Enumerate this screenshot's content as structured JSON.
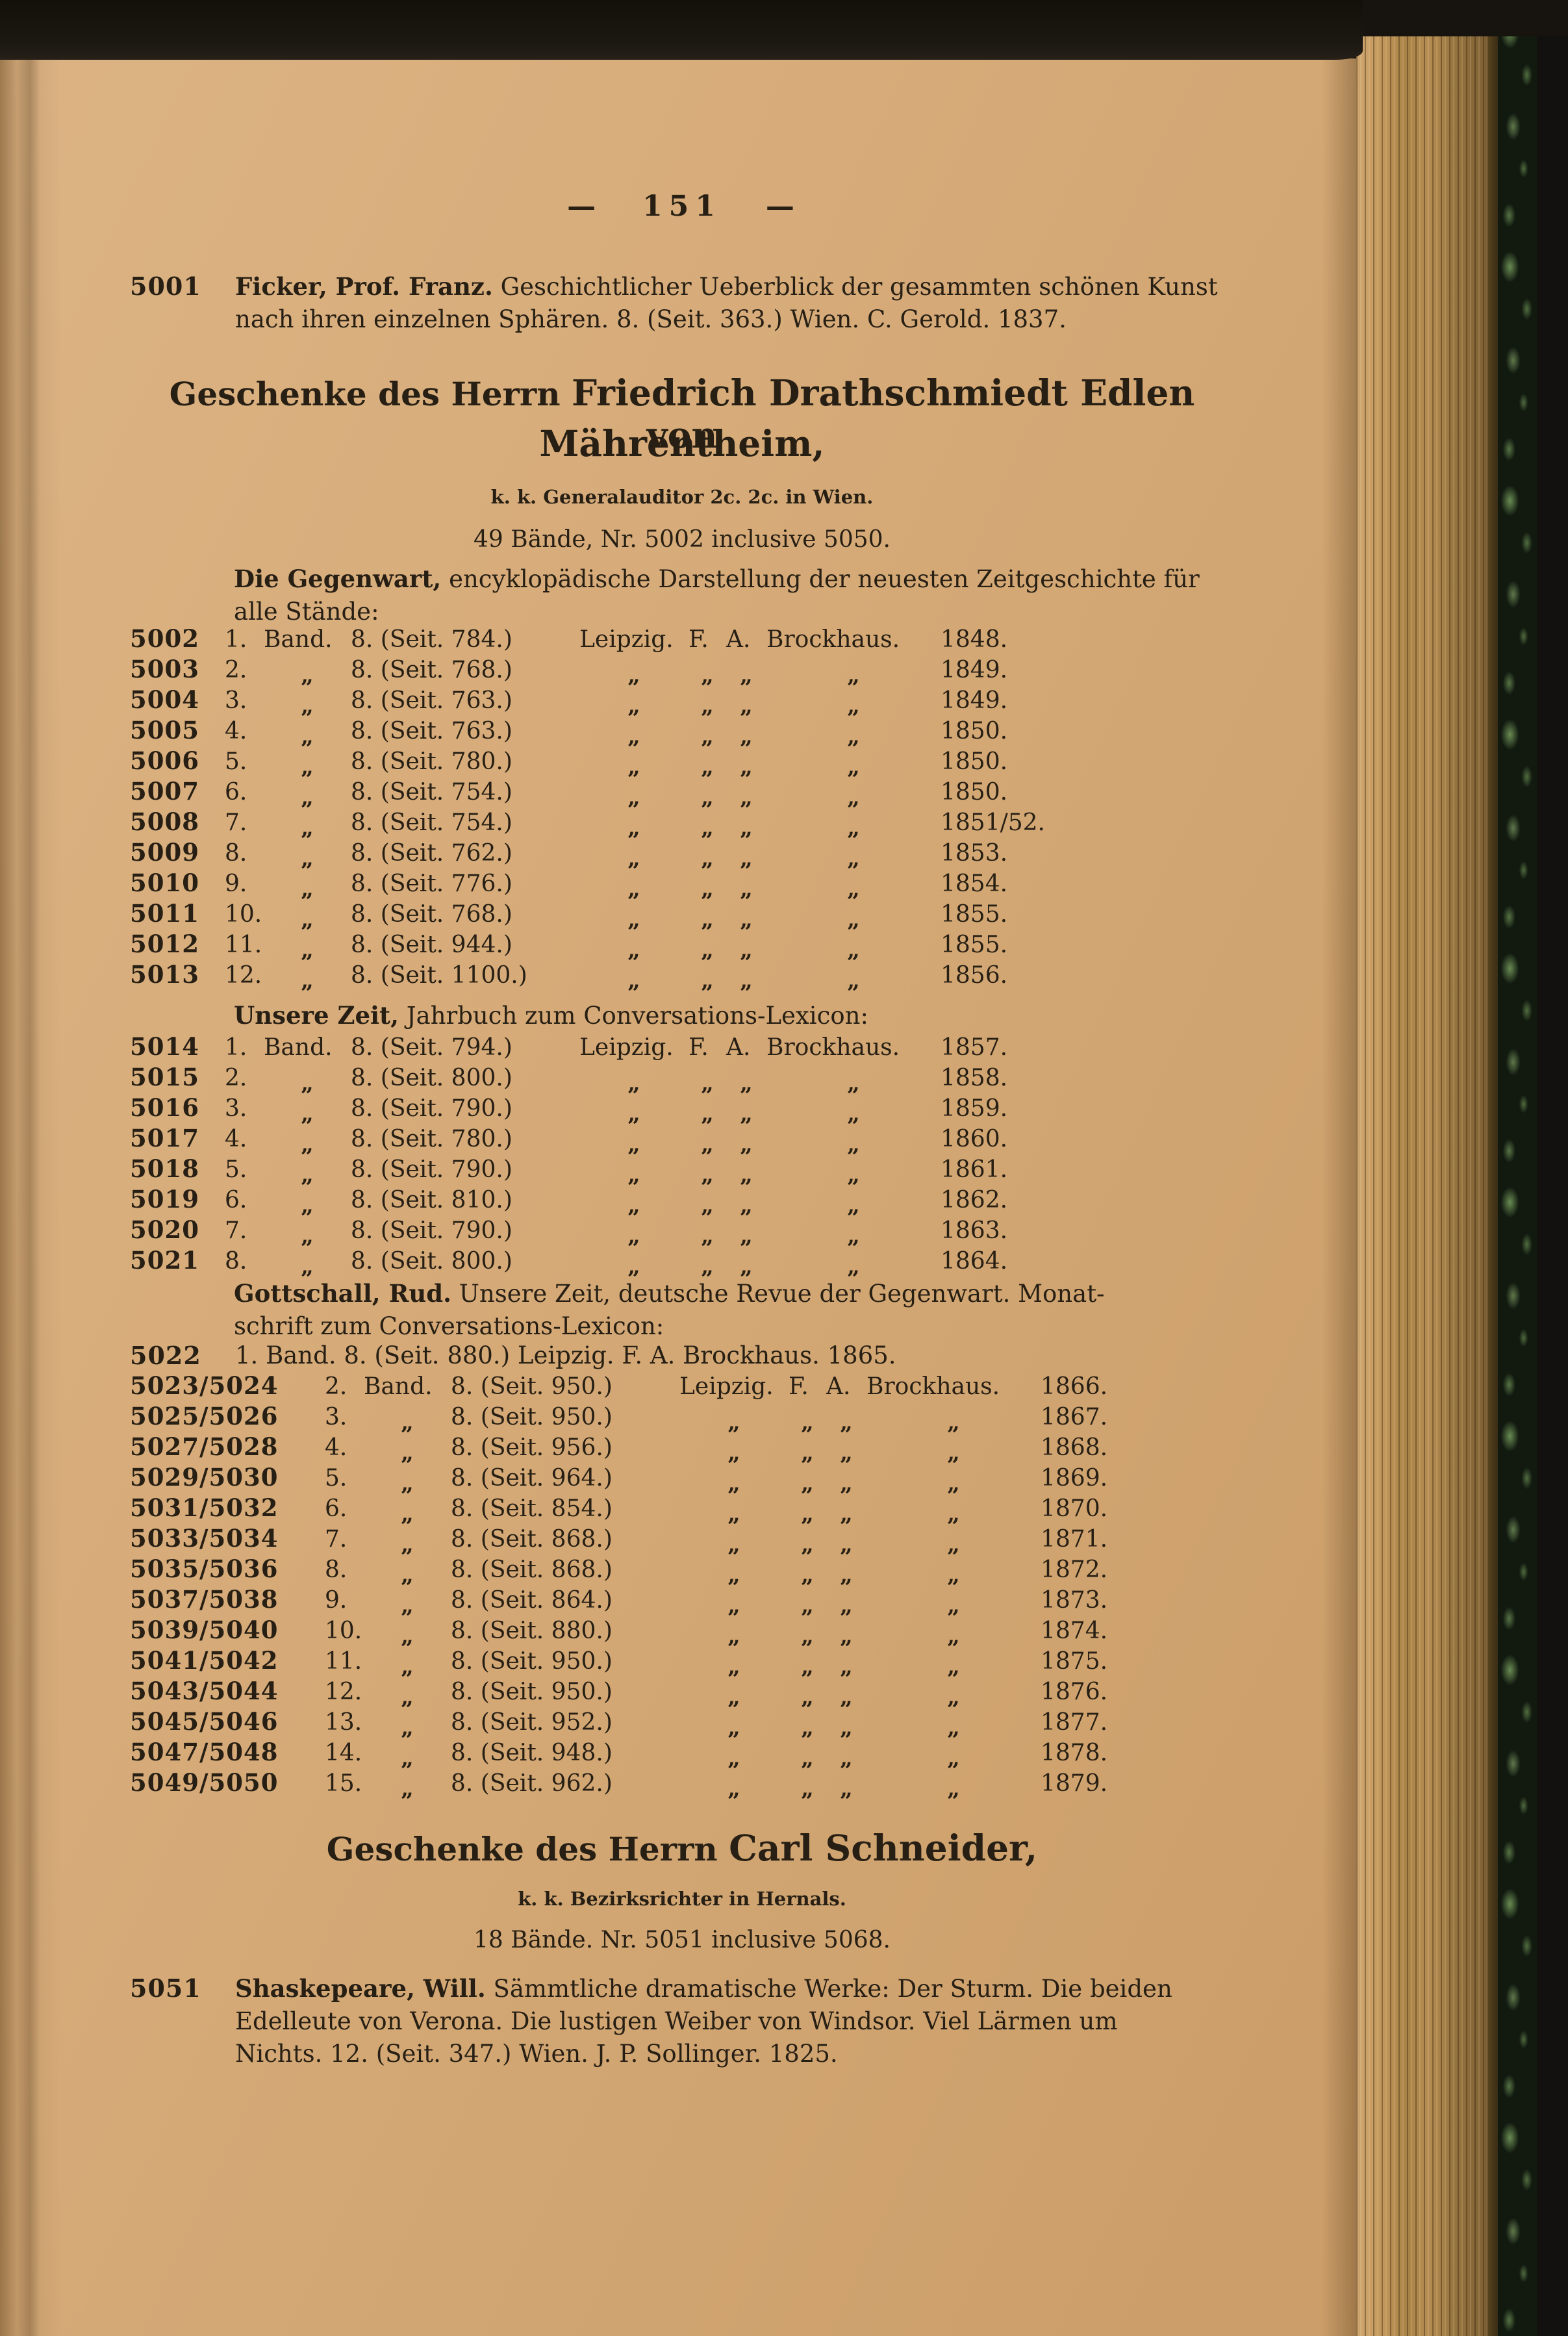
{
  "palette": {
    "paper": "#d5aa77",
    "ink": "#271f14",
    "cover_black": "#17140f",
    "marble_green": "#5d7f4b",
    "page_edge_brown": "#a98347"
  },
  "header": {
    "dash_left": "—",
    "page_number": "151",
    "dash_right": "—"
  },
  "entries": {
    "e5001": {
      "no": "5001",
      "bold": "Ficker, Prof. Franz.",
      "line1_rest": " Geschichtlicher Ueberblick der gesammten schönen Kunst",
      "line2": "nach ihren einzelnen Sphären. 8. (Seit. 363.) Wien. C. Gerold. 1837."
    },
    "e5022": {
      "no": "5022",
      "line": "1. Band. 8. (Seit. 880.) Leipzig. F. A. Brockhaus. 1865."
    },
    "e5051": {
      "no": "5051",
      "bold": "Shaskepeare, Will.",
      "line1_rest": " Sämmtliche dramatische Werke: Der Sturm. Die beiden",
      "line2": "Edelleute von Verona. Die lustigen Weiber von Windsor. Viel Lärmen um",
      "line3": "Nichts. 12. (Seit. 347.) Wien. J. P. Sollinger. 1825."
    }
  },
  "sections": {
    "drath": {
      "prefix": "Geschenke des Herrn ",
      "name": "Friedrich Drathschmiedt Edlen von",
      "line2": "Mährentheim,",
      "subline": "k. k. Generalauditor 2c. 2c. in Wien.",
      "counts": "49 Bände, Nr. 5002 inclusive 5050."
    },
    "schneider": {
      "prefix": "Geschenke des Herrn ",
      "name": "Carl Schneider,",
      "subline": "k. k. Bezirksrichter in Hernals.",
      "counts": "18 Bände. Nr. 5051 inclusive 5068."
    }
  },
  "headers": {
    "gegenwart_bold": "Die Gegenwart,",
    "gegenwart_rest": " encyklopädische Darstellung der neuesten Zeitgeschichte für",
    "gegenwart_line2": "alle Stände:",
    "unserezeit_bold": "Unsere Zeit,",
    "unserezeit_rest": " Jahrbuch zum Conversations-Lexicon:",
    "gottschall_bold": "Gottschall, Rud.",
    "gottschall_rest": " Unsere Zeit, deutsche Revue der Gegenwart. Monat-",
    "gottschall_line2": "schrift zum Conversations-Lexicon:"
  },
  "tables": {
    "gegenwart": {
      "rows": [
        {
          "no": "5002",
          "band": "1.",
          "bandw": "Band.",
          "fmt": "8. (Seit. 784.)",
          "c1": "Leipzig.",
          "c2": "F.",
          "c3": "A.",
          "c4": "Brockhaus.",
          "year": "1848."
        },
        {
          "no": "5003",
          "band": "2.",
          "bandw": "„",
          "fmt": "8. (Seit. 768.)",
          "c1": "„",
          "c2": "„",
          "c3": "„",
          "c4": "„",
          "year": "1849."
        },
        {
          "no": "5004",
          "band": "3.",
          "bandw": "„",
          "fmt": "8. (Seit. 763.)",
          "c1": "„",
          "c2": "„",
          "c3": "„",
          "c4": "„",
          "year": "1849."
        },
        {
          "no": "5005",
          "band": "4.",
          "bandw": "„",
          "fmt": "8. (Seit. 763.)",
          "c1": "„",
          "c2": "„",
          "c3": "„",
          "c4": "„",
          "year": "1850."
        },
        {
          "no": "5006",
          "band": "5.",
          "bandw": "„",
          "fmt": "8. (Seit. 780.)",
          "c1": "„",
          "c2": "„",
          "c3": "„",
          "c4": "„",
          "year": "1850."
        },
        {
          "no": "5007",
          "band": "6.",
          "bandw": "„",
          "fmt": "8. (Seit. 754.)",
          "c1": "„",
          "c2": "„",
          "c3": "„",
          "c4": "„",
          "year": "1850."
        },
        {
          "no": "5008",
          "band": "7.",
          "bandw": "„",
          "fmt": "8. (Seit. 754.)",
          "c1": "„",
          "c2": "„",
          "c3": "„",
          "c4": "„",
          "year": "1851/52."
        },
        {
          "no": "5009",
          "band": "8.",
          "bandw": "„",
          "fmt": "8. (Seit. 762.)",
          "c1": "„",
          "c2": "„",
          "c3": "„",
          "c4": "„",
          "year": "1853."
        },
        {
          "no": "5010",
          "band": "9.",
          "bandw": "„",
          "fmt": "8. (Seit. 776.)",
          "c1": "„",
          "c2": "„",
          "c3": "„",
          "c4": "„",
          "year": "1854."
        },
        {
          "no": "5011",
          "band": "10.",
          "bandw": "„",
          "fmt": "8. (Seit. 768.)",
          "c1": "„",
          "c2": "„",
          "c3": "„",
          "c4": "„",
          "year": "1855."
        },
        {
          "no": "5012",
          "band": "11.",
          "bandw": "„",
          "fmt": "8. (Seit. 944.)",
          "c1": "„",
          "c2": "„",
          "c3": "„",
          "c4": "„",
          "year": "1855."
        },
        {
          "no": "5013",
          "band": "12.",
          "bandw": "„",
          "fmt": "8. (Seit. 1100.)",
          "c1": "„",
          "c2": "„",
          "c3": "„",
          "c4": "„",
          "year": "1856."
        }
      ]
    },
    "unserezeit": {
      "rows": [
        {
          "no": "5014",
          "band": "1.",
          "bandw": "Band.",
          "fmt": "8. (Seit. 794.)",
          "c1": "Leipzig.",
          "c2": "F.",
          "c3": "A.",
          "c4": "Brockhaus.",
          "year": "1857."
        },
        {
          "no": "5015",
          "band": "2.",
          "bandw": "„",
          "fmt": "8. (Seit. 800.)",
          "c1": "„",
          "c2": "„",
          "c3": "„",
          "c4": "„",
          "year": "1858."
        },
        {
          "no": "5016",
          "band": "3.",
          "bandw": "„",
          "fmt": "8. (Seit. 790.)",
          "c1": "„",
          "c2": "„",
          "c3": "„",
          "c4": "„",
          "year": "1859."
        },
        {
          "no": "5017",
          "band": "4.",
          "bandw": "„",
          "fmt": "8. (Seit. 780.)",
          "c1": "„",
          "c2": "„",
          "c3": "„",
          "c4": "„",
          "year": "1860."
        },
        {
          "no": "5018",
          "band": "5.",
          "bandw": "„",
          "fmt": "8. (Seit. 790.)",
          "c1": "„",
          "c2": "„",
          "c3": "„",
          "c4": "„",
          "year": "1861."
        },
        {
          "no": "5019",
          "band": "6.",
          "bandw": "„",
          "fmt": "8. (Seit. 810.)",
          "c1": "„",
          "c2": "„",
          "c3": "„",
          "c4": "„",
          "year": "1862."
        },
        {
          "no": "5020",
          "band": "7.",
          "bandw": "„",
          "fmt": "8. (Seit. 790.)",
          "c1": "„",
          "c2": "„",
          "c3": "„",
          "c4": "„",
          "year": "1863."
        },
        {
          "no": "5021",
          "band": "8.",
          "bandw": "„",
          "fmt": "8. (Seit. 800.)",
          "c1": "„",
          "c2": "„",
          "c3": "„",
          "c4": "„",
          "year": "1864."
        }
      ]
    },
    "gottschall": {
      "rows": [
        {
          "no": "5023/5024",
          "band": "2.",
          "bandw": "Band.",
          "fmt": "8. (Seit. 950.)",
          "c1": "Leipzig.",
          "c2": "F.",
          "c3": "A.",
          "c4": "Brockhaus.",
          "year": "1866."
        },
        {
          "no": "5025/5026",
          "band": "3.",
          "bandw": "„",
          "fmt": "8. (Seit. 950.)",
          "c1": "„",
          "c2": "„",
          "c3": "„",
          "c4": "„",
          "year": "1867."
        },
        {
          "no": "5027/5028",
          "band": "4.",
          "bandw": "„",
          "fmt": "8. (Seit. 956.)",
          "c1": "„",
          "c2": "„",
          "c3": "„",
          "c4": "„",
          "year": "1868."
        },
        {
          "no": "5029/5030",
          "band": "5.",
          "bandw": "„",
          "fmt": "8. (Seit. 964.)",
          "c1": "„",
          "c2": "„",
          "c3": "„",
          "c4": "„",
          "year": "1869."
        },
        {
          "no": "5031/5032",
          "band": "6.",
          "bandw": "„",
          "fmt": "8. (Seit. 854.)",
          "c1": "„",
          "c2": "„",
          "c3": "„",
          "c4": "„",
          "year": "1870."
        },
        {
          "no": "5033/5034",
          "band": "7.",
          "bandw": "„",
          "fmt": "8. (Seit. 868.)",
          "c1": "„",
          "c2": "„",
          "c3": "„",
          "c4": "„",
          "year": "1871."
        },
        {
          "no": "5035/5036",
          "band": "8.",
          "bandw": "„",
          "fmt": "8. (Seit. 868.)",
          "c1": "„",
          "c2": "„",
          "c3": "„",
          "c4": "„",
          "year": "1872."
        },
        {
          "no": "5037/5038",
          "band": "9.",
          "bandw": "„",
          "fmt": "8. (Seit. 864.)",
          "c1": "„",
          "c2": "„",
          "c3": "„",
          "c4": "„",
          "year": "1873."
        },
        {
          "no": "5039/5040",
          "band": "10.",
          "bandw": "„",
          "fmt": "8. (Seit. 880.)",
          "c1": "„",
          "c2": "„",
          "c3": "„",
          "c4": "„",
          "year": "1874."
        },
        {
          "no": "5041/5042",
          "band": "11.",
          "bandw": "„",
          "fmt": "8. (Seit. 950.)",
          "c1": "„",
          "c2": "„",
          "c3": "„",
          "c4": "„",
          "year": "1875."
        },
        {
          "no": "5043/5044",
          "band": "12.",
          "bandw": "„",
          "fmt": "8. (Seit. 950.)",
          "c1": "„",
          "c2": "„",
          "c3": "„",
          "c4": "„",
          "year": "1876."
        },
        {
          "no": "5045/5046",
          "band": "13.",
          "bandw": "„",
          "fmt": "8. (Seit. 952.)",
          "c1": "„",
          "c2": "„",
          "c3": "„",
          "c4": "„",
          "year": "1877."
        },
        {
          "no": "5047/5048",
          "band": "14.",
          "bandw": "„",
          "fmt": "8. (Seit. 948.)",
          "c1": "„",
          "c2": "„",
          "c3": "„",
          "c4": "„",
          "year": "1878."
        },
        {
          "no": "5049/5050",
          "band": "15.",
          "bandw": "„",
          "fmt": "8. (Seit. 962.)",
          "c1": "„",
          "c2": "„",
          "c3": "„",
          "c4": "„",
          "year": "1879."
        }
      ]
    }
  }
}
